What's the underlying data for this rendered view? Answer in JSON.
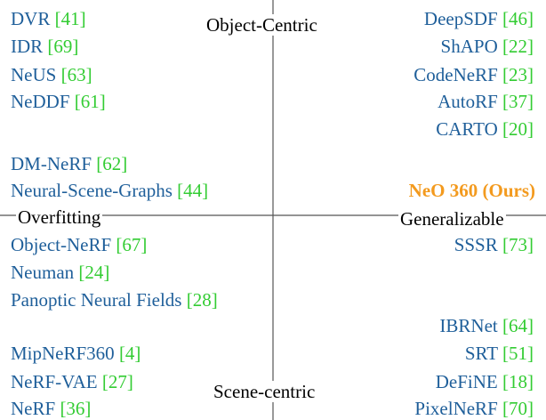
{
  "colors": {
    "method_text": "#1f5f9a",
    "citation": "#33cc33",
    "ours": "#f39a1e",
    "axis": "#555555"
  },
  "axes": {
    "top": "Object-Centric",
    "bottom": "Scene-centric",
    "left": "Overfitting",
    "right": "Generalizable"
  },
  "quadrants": {
    "top_left": [
      {
        "name": "DVR",
        "ref": "[41]"
      },
      {
        "name": "IDR",
        "ref": "[69]"
      },
      {
        "name": "NeUS",
        "ref": "[63]"
      },
      {
        "name": "NeDDF",
        "ref": "[61]"
      },
      {
        "name": "DM-NeRF",
        "ref": "[62]"
      },
      {
        "name": "Neural-Scene-Graphs",
        "ref": "[44]"
      }
    ],
    "top_right": [
      {
        "name": "DeepSDF",
        "ref": "[46]"
      },
      {
        "name": "ShAPO",
        "ref": "[22]"
      },
      {
        "name": "CodeNeRF",
        "ref": "[23]"
      },
      {
        "name": "AutoRF",
        "ref": "[37]"
      },
      {
        "name": "CARTO",
        "ref": "[20]"
      },
      {
        "name": "NeO 360 (Ours)",
        "ref": ""
      }
    ],
    "bottom_left": [
      {
        "name": "Object-NeRF",
        "ref": "[67]"
      },
      {
        "name": "Neuman",
        "ref": "[24]"
      },
      {
        "name": "Panoptic Neural Fields ",
        "ref": "[28]"
      },
      {
        "name": "MipNeRF360",
        "ref": "[4]"
      },
      {
        "name": "NeRF-VAE",
        "ref": "[27]"
      },
      {
        "name": "NeRF",
        "ref": "[36]"
      }
    ],
    "bottom_right": [
      {
        "name": "SSSR",
        "ref": "[73]"
      },
      {
        "name": "IBRNet",
        "ref": "[64]"
      },
      {
        "name": "SRT",
        "ref": "[51]"
      },
      {
        "name": "DeFiNE",
        "ref": "[18]"
      },
      {
        "name": "PixelNeRF",
        "ref": "[70]"
      }
    ]
  }
}
